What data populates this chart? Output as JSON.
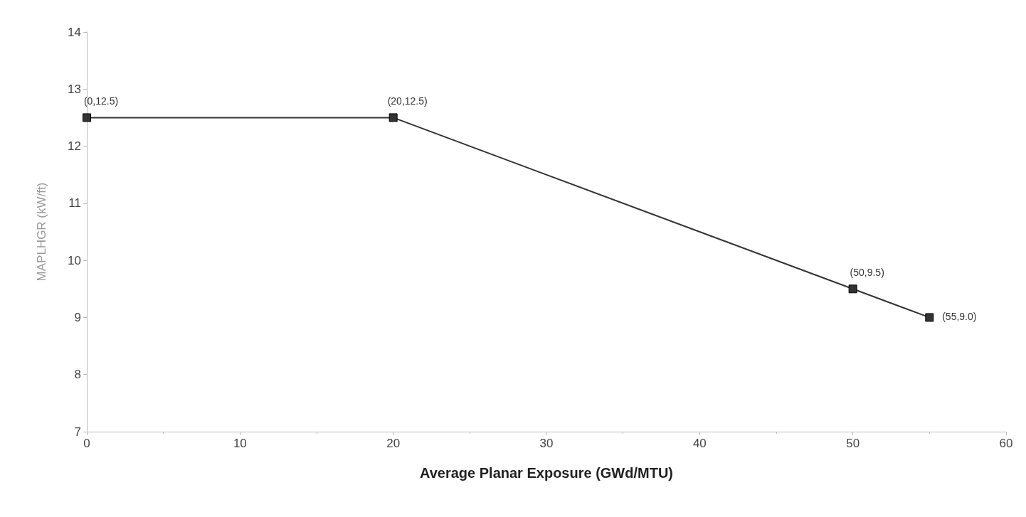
{
  "chart_data": {
    "type": "line",
    "xlabel": "Average Planar Exposure (GWd/MTU)",
    "ylabel": "MAPLHGR (kW/ft)",
    "x": [
      0,
      20,
      50,
      55
    ],
    "series": [
      {
        "color": "#333333",
        "values": [
          12.5,
          12.5,
          9.5,
          9.0
        ],
        "value_labels": [
          "(0,12.5)",
          "(20,12.5)",
          "(50,9.5)",
          "(55,9.0)"
        ]
      }
    ],
    "xlim": [
      0,
      60
    ],
    "xticks": [
      0,
      10,
      20,
      30,
      40,
      50,
      60
    ],
    "ylim": [
      7,
      14
    ],
    "yticks": [
      7,
      8,
      9,
      10,
      11,
      12,
      13,
      14
    ],
    "grid": false,
    "marker": "square",
    "line_style": "solid"
  }
}
